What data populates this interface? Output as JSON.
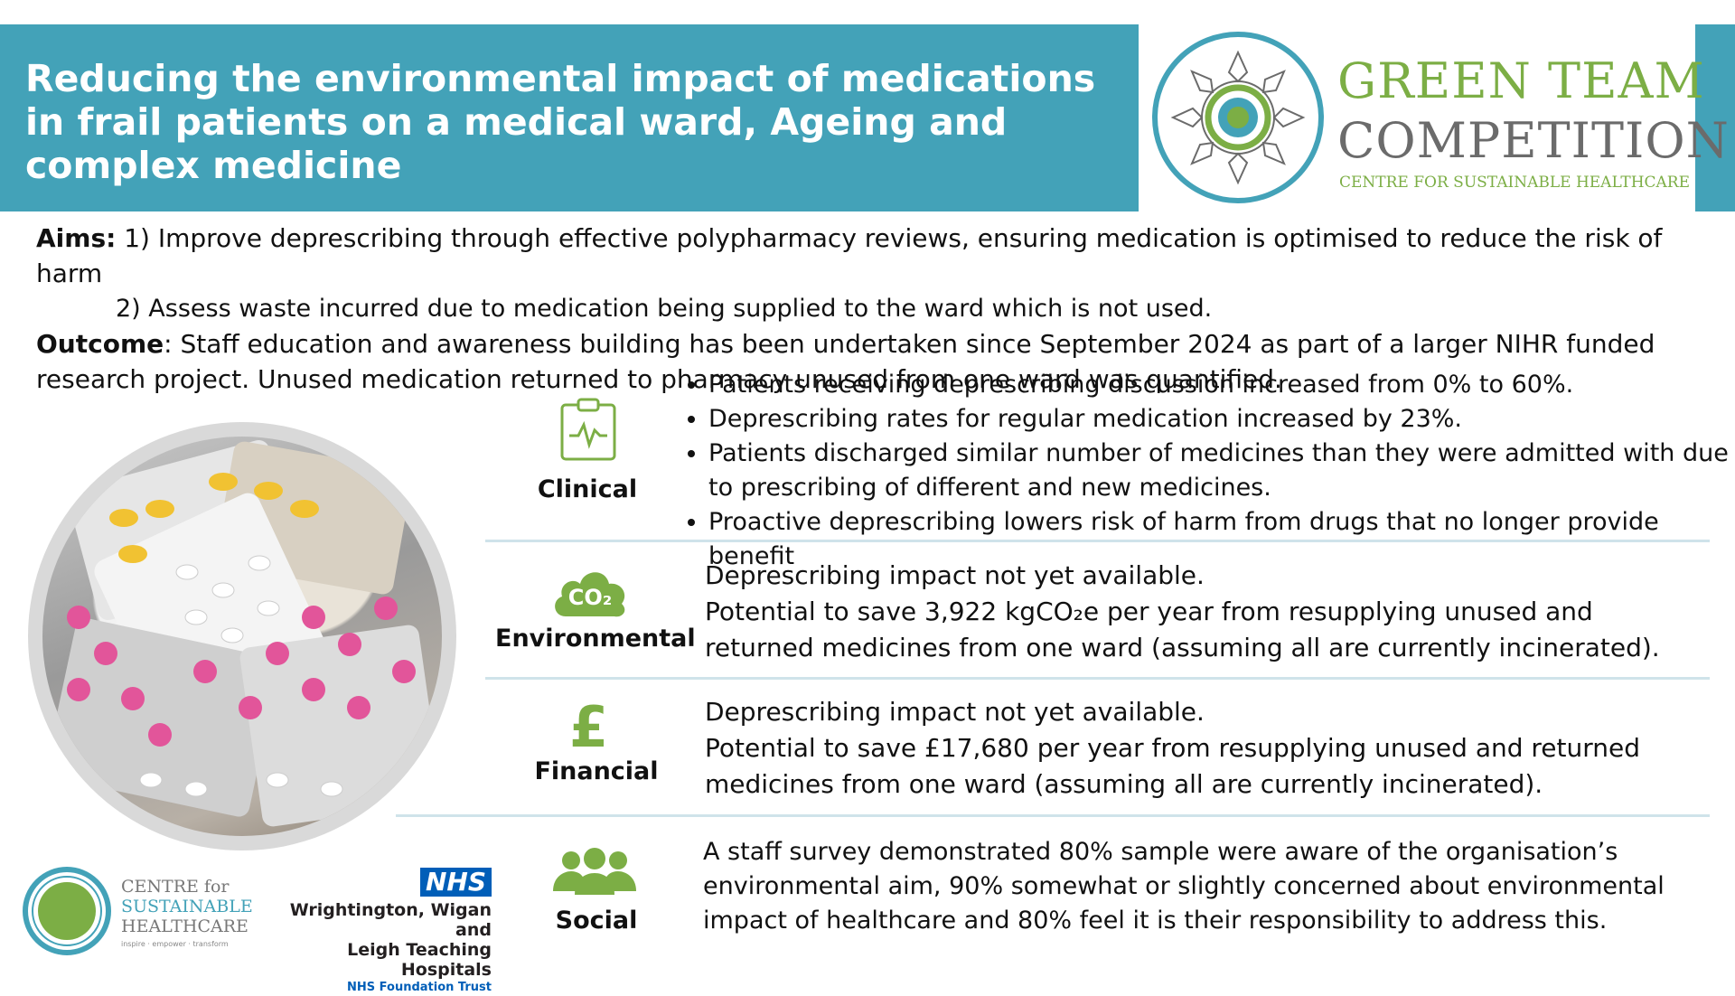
{
  "header": {
    "title": "Reducing the environmental impact of medications in frail patients on a medical ward, Ageing and complex medicine"
  },
  "logo": {
    "line1": "GREEN TEAM",
    "line2": "COMPETITION",
    "line3": "CENTRE FOR SUSTAINABLE HEALTHCARE"
  },
  "aims": {
    "aims_label": "Aims:",
    "aim1": " 1) Improve deprescribing through effective polypharmacy reviews, ensuring medication is optimised to reduce the risk of harm",
    "aim2": "2) Assess waste incurred due to medication being supplied to the ward which is not used.",
    "outcome_label": "Outcome",
    "outcome_text": ": Staff education and awareness building has been undertaken since September 2024 as part of a larger NIHR funded research project. Unused medication returned to pharmacy unused from one ward was quantified."
  },
  "clinical": {
    "label": "Clinical",
    "bullets": [
      "Patients receiving deprescribing discussion increased from 0% to 60%.",
      "Deprescribing rates for regular medication increased by 23%.",
      "Patients discharged similar number of medicines than they were admitted with due to prescribing of different and new medicines.",
      "Proactive deprescribing lowers risk of harm from drugs that no longer provide benefit"
    ]
  },
  "environmental": {
    "label": "Environmental",
    "icon_text": "CO₂",
    "line1": "Deprescribing impact not yet available.",
    "line2": "Potential to save 3,922 kgCO₂e per year from resupplying unused and returned medicines from one ward (assuming all are currently incinerated)."
  },
  "financial": {
    "label": "Financial",
    "icon_text": "£",
    "line1": "Deprescribing impact not yet available.",
    "line2": "Potential to save £17,680 per year from resupplying unused and returned medicines from one ward (assuming all are currently incinerated)."
  },
  "social": {
    "label": "Social",
    "text": "A staff survey demonstrated 80% sample were aware of the organisation’s environmental aim, 90% somewhat or slightly concerned about environmental impact of healthcare and 80% feel it is their responsibility to address this."
  },
  "footer": {
    "csh_line1": "CENTRE for",
    "csh_line2": "SUSTAINABLE",
    "csh_line3": "HEALTHCARE",
    "csh_tag": "inspire · empower · transform",
    "nhs_badge": "NHS",
    "nhs_line1": "Wrightington, Wigan and",
    "nhs_line2": "Leigh Teaching Hospitals",
    "nhs_line3": "NHS Foundation Trust"
  },
  "colors": {
    "header_bg": "#43a2b8",
    "accent_green": "#7cae45",
    "nhs_blue": "#005eb8"
  }
}
